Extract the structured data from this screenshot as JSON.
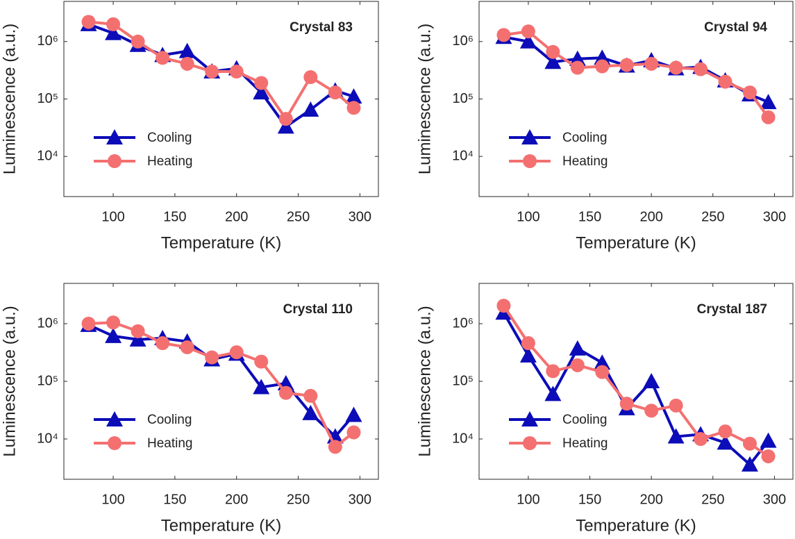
{
  "chart_data": [
    {
      "type": "line",
      "title": "Crystal 83",
      "xlabel": "Temperature (K)",
      "ylabel": "Luminescence (a.u.)",
      "x": [
        80,
        100,
        120,
        140,
        160,
        180,
        200,
        220,
        240,
        260,
        280,
        295
      ],
      "series": [
        {
          "name": "Cooling",
          "color": "#0c0cb8",
          "marker": "triangle",
          "values": [
            2000000,
            1400000,
            870000,
            580000,
            680000,
            300000,
            340000,
            130000,
            33000,
            65000,
            140000,
            110000
          ]
        },
        {
          "name": "Heating",
          "color": "#f47070",
          "marker": "circle",
          "values": [
            2200000,
            2000000,
            1000000,
            520000,
            410000,
            300000,
            300000,
            190000,
            45000,
            240000,
            130000,
            70000
          ]
        }
      ],
      "xlim": [
        60,
        315
      ],
      "xticks": [
        100,
        150,
        200,
        250,
        300
      ],
      "ylim": [
        2000,
        5000000
      ],
      "yscale": "log",
      "yticks": [
        {
          "value": 10000,
          "label": "10⁴"
        },
        {
          "value": 100000,
          "label": "10⁵"
        },
        {
          "value": 1000000,
          "label": "10⁶"
        }
      ],
      "legend": "lower left"
    },
    {
      "type": "line",
      "title": "Crystal 94",
      "xlabel": "Temperature (K)",
      "ylabel": "Luminescence (a.u.)",
      "x": [
        80,
        100,
        120,
        140,
        160,
        180,
        200,
        220,
        240,
        260,
        280,
        295
      ],
      "series": [
        {
          "name": "Cooling",
          "color": "#0c0cb8",
          "marker": "triangle",
          "values": [
            1200000,
            1000000,
            440000,
            500000,
            520000,
            380000,
            470000,
            340000,
            360000,
            210000,
            120000,
            88000
          ]
        },
        {
          "name": "Heating",
          "color": "#f47070",
          "marker": "circle",
          "values": [
            1300000,
            1500000,
            660000,
            350000,
            370000,
            390000,
            410000,
            350000,
            330000,
            200000,
            130000,
            48000
          ]
        }
      ],
      "xlim": [
        60,
        315
      ],
      "xticks": [
        100,
        150,
        200,
        250,
        300
      ],
      "ylim": [
        2000,
        5000000
      ],
      "yscale": "log",
      "yticks": [
        {
          "value": 10000,
          "label": "10⁴"
        },
        {
          "value": 100000,
          "label": "10⁵"
        },
        {
          "value": 1000000,
          "label": "10⁶"
        }
      ],
      "legend": "lower left"
    },
    {
      "type": "line",
      "title": "Crystal 110",
      "xlabel": "Temperature (K)",
      "ylabel": "Luminescence (a.u.)",
      "x": [
        80,
        100,
        120,
        140,
        160,
        180,
        200,
        220,
        240,
        260,
        280,
        295
      ],
      "series": [
        {
          "name": "Cooling",
          "color": "#0c0cb8",
          "marker": "triangle",
          "values": [
            950000,
            610000,
            530000,
            560000,
            490000,
            240000,
            300000,
            79000,
            92000,
            28000,
            11000,
            26000
          ]
        },
        {
          "name": "Heating",
          "color": "#f47070",
          "marker": "circle",
          "values": [
            1000000,
            1050000,
            740000,
            460000,
            390000,
            260000,
            320000,
            220000,
            63000,
            56000,
            7300,
            13000
          ]
        }
      ],
      "xlim": [
        60,
        315
      ],
      "xticks": [
        100,
        150,
        200,
        250,
        300
      ],
      "ylim": [
        2000,
        5000000
      ],
      "yscale": "log",
      "yticks": [
        {
          "value": 10000,
          "label": "10⁴"
        },
        {
          "value": 100000,
          "label": "10⁵"
        },
        {
          "value": 1000000,
          "label": "10⁶"
        }
      ],
      "legend": "lower left"
    },
    {
      "type": "line",
      "title": "Crystal 187",
      "xlabel": "Temperature (K)",
      "ylabel": "Luminescence (a.u.)",
      "x": [
        80,
        100,
        120,
        140,
        160,
        180,
        200,
        220,
        240,
        260,
        280,
        295
      ],
      "series": [
        {
          "name": "Cooling",
          "color": "#0c0cb8",
          "marker": "triangle",
          "values": [
            1550000,
            280000,
            60000,
            370000,
            210000,
            34000,
            100000,
            11000,
            12000,
            8600,
            3600,
            9300
          ]
        },
        {
          "name": "Heating",
          "color": "#f47070",
          "marker": "circle",
          "values": [
            2050000,
            460000,
            150000,
            190000,
            145000,
            41000,
            31000,
            38000,
            10000,
            13500,
            8300,
            5000
          ]
        }
      ],
      "xlim": [
        60,
        315
      ],
      "xticks": [
        100,
        150,
        200,
        250,
        300
      ],
      "ylim": [
        2000,
        5000000
      ],
      "yscale": "log",
      "yticks": [
        {
          "value": 10000,
          "label": "10⁴"
        },
        {
          "value": 100000,
          "label": "10⁵"
        },
        {
          "value": 1000000,
          "label": "10⁶"
        }
      ],
      "legend": "lower left"
    }
  ]
}
